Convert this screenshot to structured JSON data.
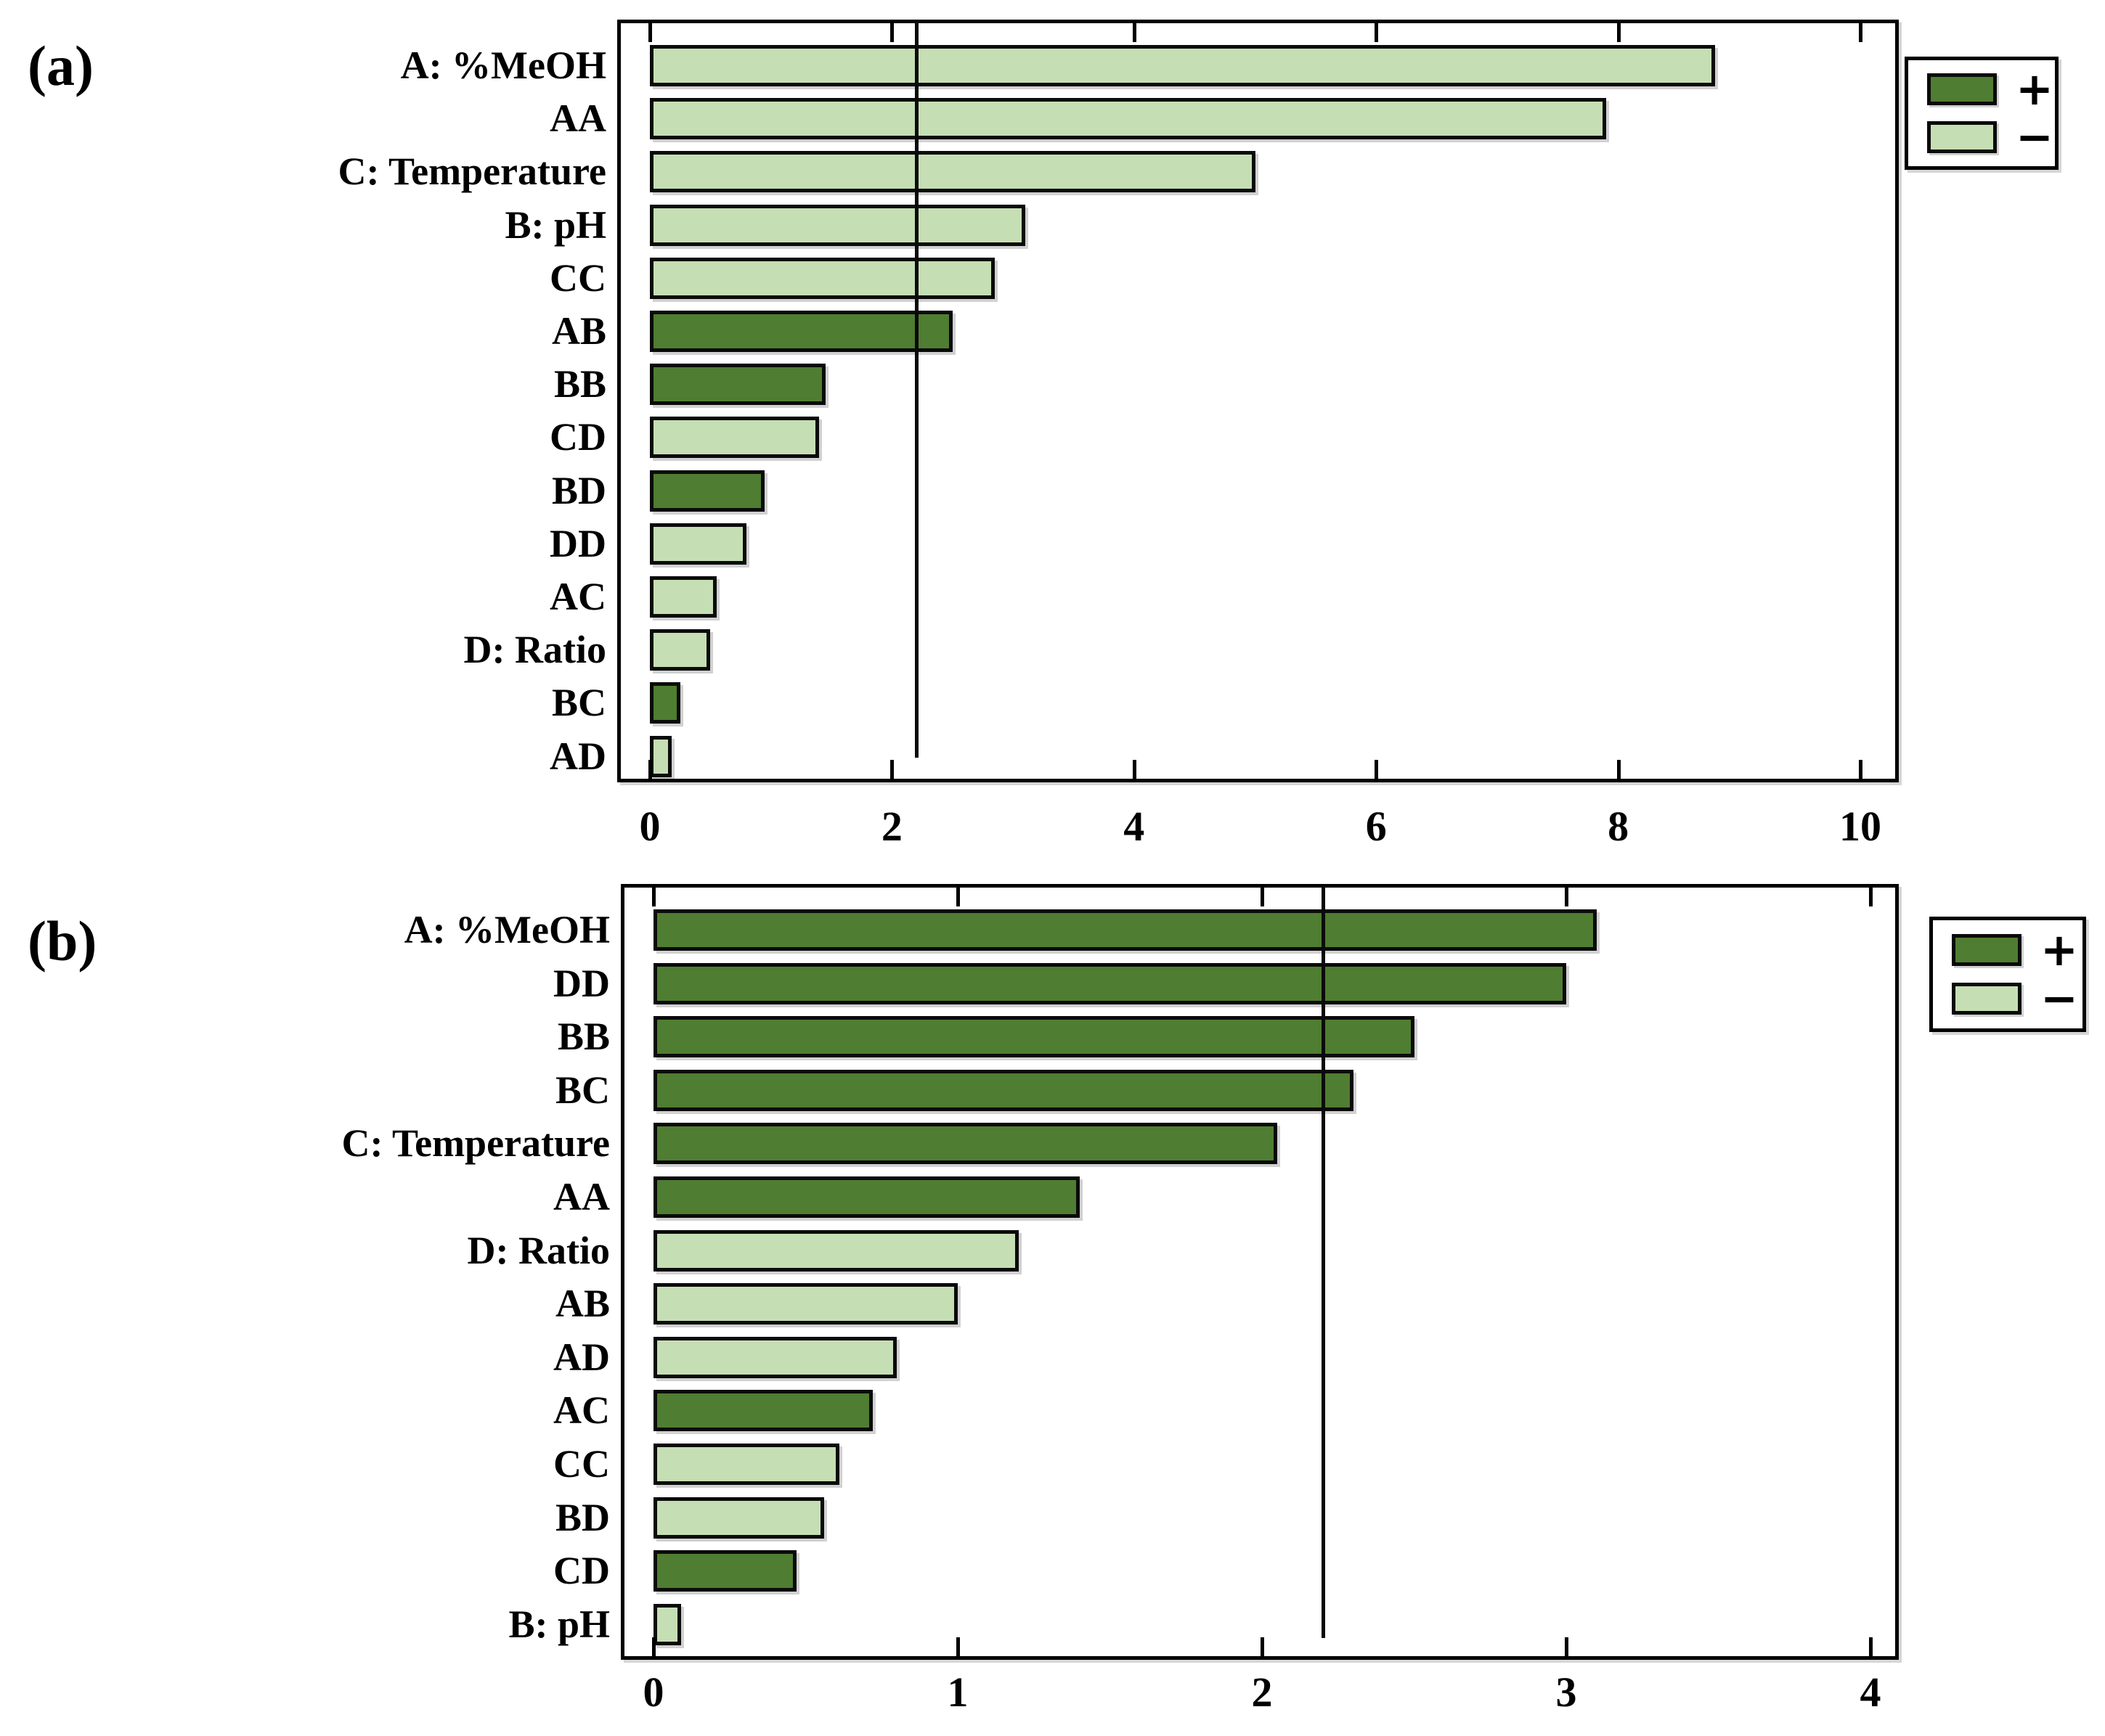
{
  "colors": {
    "positive_bar": "#4f7d31",
    "negative_bar": "#c6deb3",
    "bar_outline": "#0a0a0a",
    "frame": "#000000",
    "reference_line": "#0a0a0a",
    "background": "#ffffff",
    "text": "#000000"
  },
  "chart_data": [
    {
      "type": "bar",
      "orientation": "horizontal",
      "panel_label": "(a)",
      "title": "",
      "xlabel": "",
      "ylabel": "",
      "categories": [
        "A: %MeOH",
        "AA",
        "C: Temperature",
        "B: pH",
        "CC",
        "AB",
        "BB",
        "CD",
        "BD",
        "DD",
        "AC",
        "D: Ratio",
        "BC",
        "AD"
      ],
      "values": [
        8.8,
        7.9,
        5.0,
        3.1,
        2.85,
        2.5,
        1.45,
        1.4,
        0.95,
        0.8,
        0.55,
        0.5,
        0.25,
        0.18
      ],
      "signs": [
        "-",
        "-",
        "-",
        "-",
        "-",
        "+",
        "+",
        "-",
        "+",
        "-",
        "-",
        "-",
        "+",
        "-"
      ],
      "xlim": [
        0,
        10.35
      ],
      "xticks": [
        0,
        2,
        4,
        6,
        8,
        10
      ],
      "xtick_labels": [
        "0",
        "2",
        "4",
        "6",
        "8",
        "10"
      ],
      "reference_line_x": 2.2,
      "grid": false,
      "legend": {
        "position": "outside-top-right",
        "positive_label": "+",
        "negative_label": "−"
      }
    },
    {
      "type": "bar",
      "orientation": "horizontal",
      "panel_label": "(b)",
      "title": "",
      "xlabel": "",
      "ylabel": "",
      "categories": [
        "A: %MeOH",
        "DD",
        "BB",
        "BC",
        "C: Temperature",
        "AA",
        "D: Ratio",
        "AB",
        "AD",
        "AC",
        "CC",
        "BD",
        "CD",
        "B: pH"
      ],
      "values": [
        3.1,
        3.0,
        2.5,
        2.3,
        2.05,
        1.4,
        1.2,
        1.0,
        0.8,
        0.72,
        0.61,
        0.56,
        0.47,
        0.09
      ],
      "signs": [
        "+",
        "+",
        "+",
        "+",
        "+",
        "+",
        "-",
        "-",
        "-",
        "+",
        "-",
        "-",
        "+",
        "-"
      ],
      "xlim": [
        0,
        4.1
      ],
      "xticks": [
        0,
        1,
        2,
        3,
        4
      ],
      "xtick_labels": [
        "0",
        "1",
        "2",
        "3",
        "4"
      ],
      "reference_line_x": 2.2,
      "grid": false,
      "legend": {
        "position": "outside-top-right",
        "positive_label": "+",
        "negative_label": "−"
      }
    }
  ]
}
